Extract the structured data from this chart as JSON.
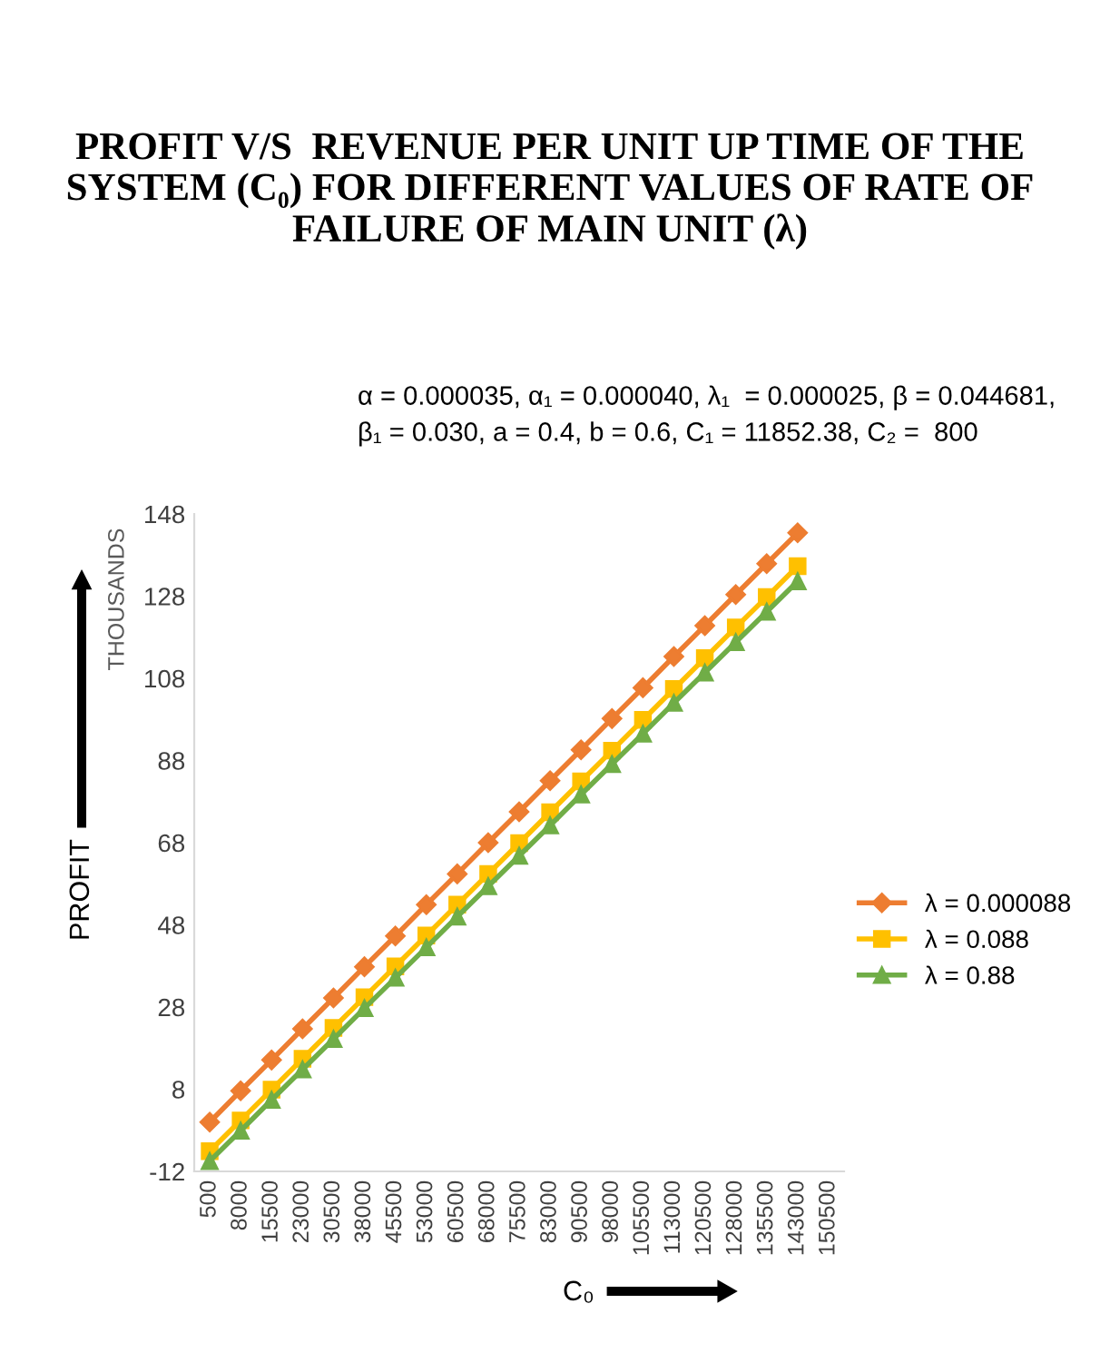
{
  "chart_data": {
    "type": "line",
    "title": "PROFIT V/S  REVENUE PER UNIT UP TIME OF THE SYSTEM (C₀) FOR DIFFERENT VALUES OF RATE OF FAILURE OF MAIN UNIT (λ)",
    "subtitle": "α = 0.000035, α₁ = 0.000040, λ₁  = 0.000025, β = 0.044681,\nβ₁ = 0.030, a = 0.4, b = 0.6, C₁ = 11852.38, C₂ =  800",
    "xlabel": "C₀",
    "ylabel": "PROFIT",
    "annotations": [
      "THOUSANDS"
    ],
    "categories": [
      "500",
      "8000",
      "15500",
      "23000",
      "30500",
      "38000",
      "45500",
      "53000",
      "60500",
      "68000",
      "75500",
      "83000",
      "90500",
      "98000",
      "105500",
      "113000",
      "120500",
      "128000",
      "135500",
      "143000",
      "150500"
    ],
    "series": [
      {
        "name": "λ = 0.000088",
        "color": "#ed7d31",
        "marker": "diamond",
        "values": [
          0,
          7.6,
          15.1,
          22.7,
          30.2,
          37.8,
          45.3,
          52.9,
          60.4,
          68.0,
          75.5,
          83.1,
          90.6,
          98.2,
          105.7,
          113.3,
          120.8,
          128.4,
          135.9,
          143.4,
          null
        ]
      },
      {
        "name": "λ = 0.088",
        "color": "#ffc000",
        "marker": "square",
        "values": [
          -7.1,
          0.4,
          7.9,
          15.4,
          22.9,
          30.4,
          37.9,
          45.4,
          52.9,
          60.4,
          67.9,
          75.4,
          82.9,
          90.4,
          97.9,
          105.4,
          112.9,
          120.4,
          127.8,
          135.3,
          null
        ]
      },
      {
        "name": "λ = 0.88",
        "color": "#70ad47",
        "marker": "triangle",
        "values": [
          -9.5,
          -2.1,
          5.4,
          12.8,
          20.2,
          27.7,
          35.1,
          42.5,
          50.0,
          57.4,
          64.8,
          72.2,
          79.7,
          87.1,
          94.5,
          102.0,
          109.4,
          116.8,
          124.2,
          131.6,
          null
        ]
      }
    ],
    "ylim": [
      -12,
      148
    ],
    "yticks": [
      -12,
      8,
      28,
      48,
      68,
      88,
      108,
      128,
      148
    ],
    "legend": "right",
    "grid": false
  }
}
